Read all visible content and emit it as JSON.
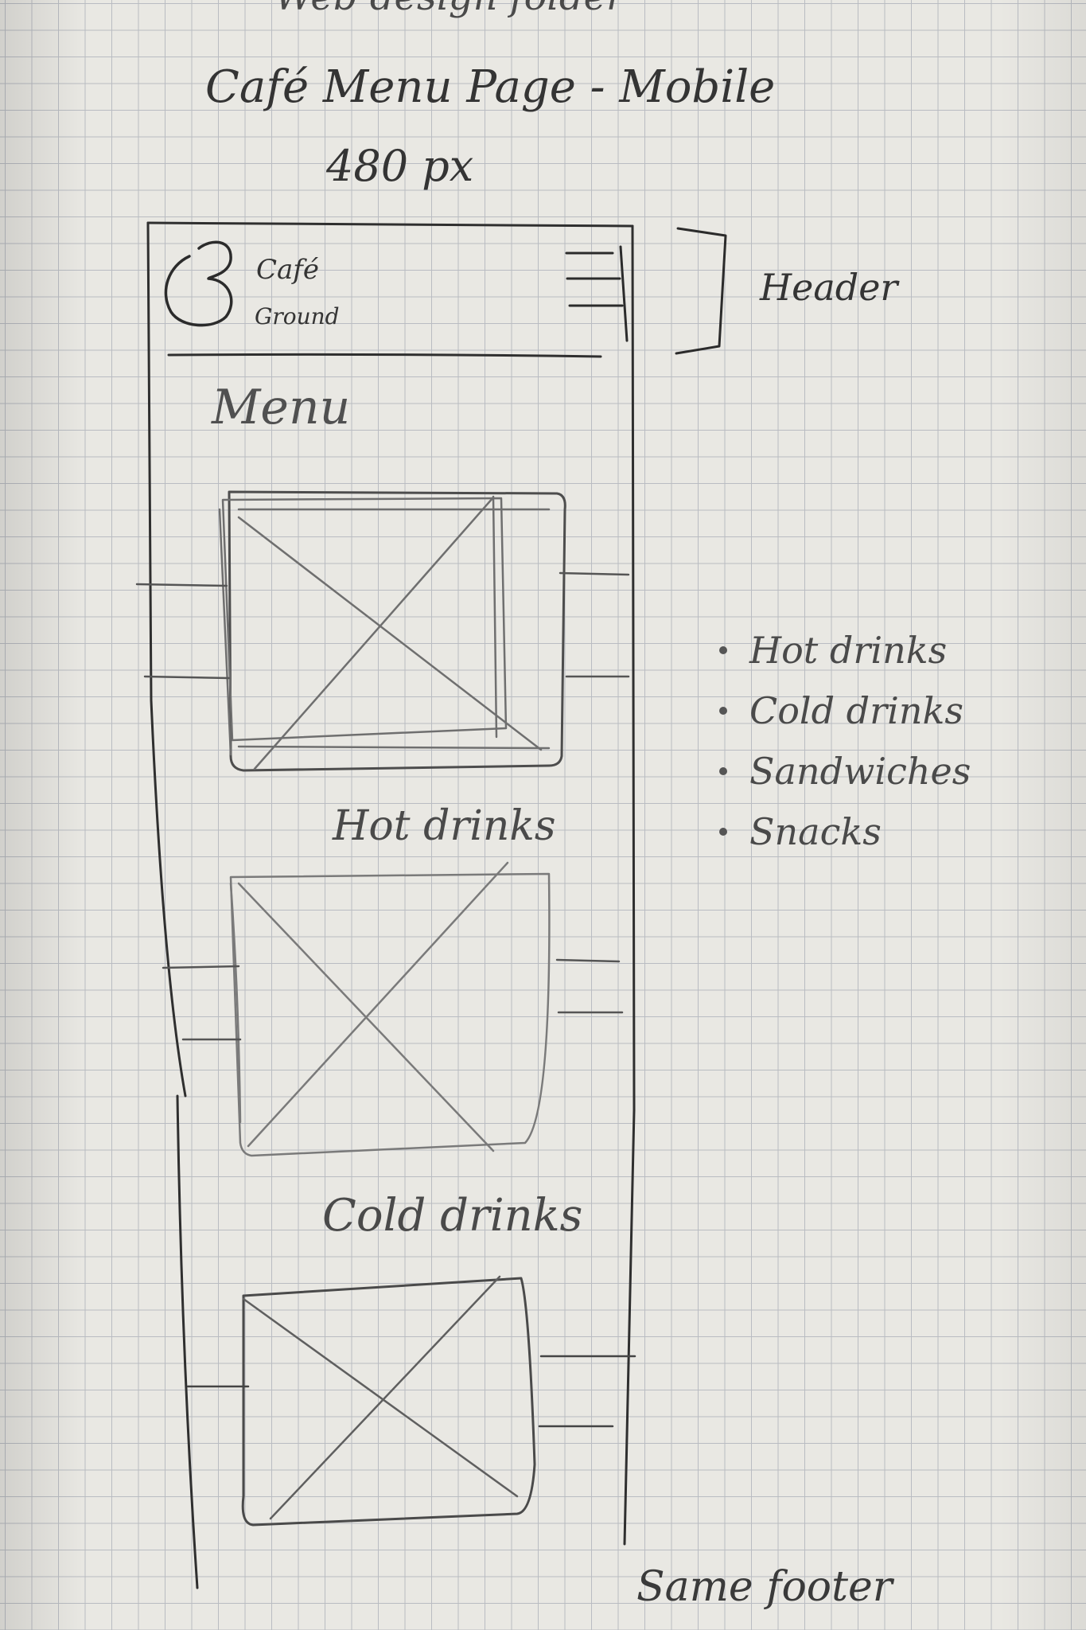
{
  "folder_title": "Web design folder",
  "page_title": "Café Menu Page - Mobile",
  "width_label": "480 px",
  "header": {
    "brand": [
      "Café",
      "Ground"
    ],
    "annotation": "Header"
  },
  "main": {
    "heading": "Menu",
    "sections": [
      "Hot drinks",
      "Cold drinks"
    ]
  },
  "side_nav": [
    "Hot drinks",
    "Cold drinks",
    "Sandwiches",
    "Snacks"
  ],
  "footer_note": "Same footer",
  "icons": [
    "logo-icon",
    "hamburger-menu-icon",
    "image-placeholder-icon"
  ]
}
